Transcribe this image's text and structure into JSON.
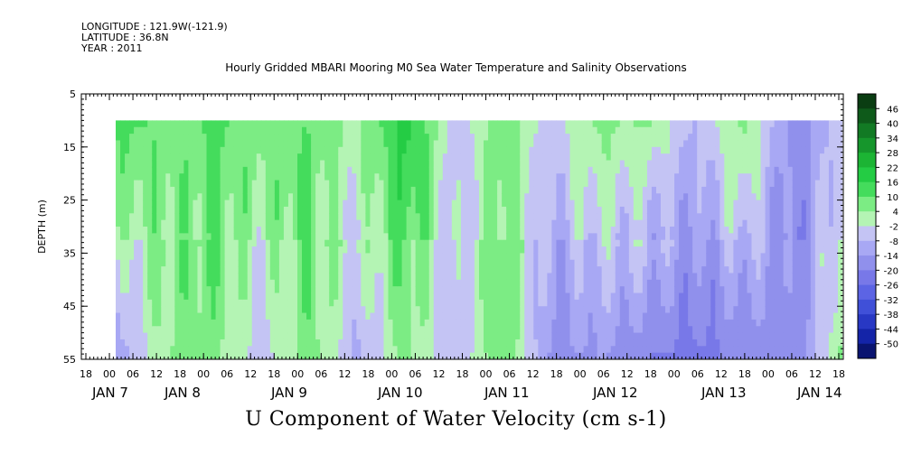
{
  "meta": {
    "longitude": "LONGITUDE : 121.9W(-121.9)",
    "latitude": "LATITUDE : 36.8N",
    "year": "YEAR : 2011"
  },
  "colorbar_ticks": [
    46,
    40,
    34,
    28,
    22,
    16,
    10,
    4,
    -2,
    -8,
    -14,
    -20,
    -26,
    -32,
    -38,
    -44,
    -50
  ],
  "chart_data": {
    "type": "heatmap",
    "title": "Hourly Gridded MBARI Mooring M0 Sea Water Temperature and Salinity Observations",
    "xlabel": "U Component of Water Velocity (cm s-1)",
    "ylabel": "DEPTH (m)",
    "ylim": [
      55,
      5
    ],
    "yticks": [
      5,
      15,
      25,
      35,
      45,
      55
    ],
    "x_range_hours": [
      "JAN 6 18:00",
      "JAN 14 18:00"
    ],
    "x_hour_ticks": [
      "18",
      "00",
      "06",
      "12",
      "18",
      "00",
      "06",
      "12",
      "18",
      "00",
      "06",
      "12",
      "18",
      "00",
      "06",
      "12",
      "18",
      "00",
      "06",
      "12",
      "18",
      "00",
      "06",
      "12",
      "18",
      "00",
      "06",
      "12",
      "18",
      "00",
      "06",
      "12",
      "18"
    ],
    "x_day_labels": [
      "JAN 7",
      "JAN 8",
      "JAN 9",
      "JAN 10",
      "JAN 11",
      "JAN 12",
      "JAN 13",
      "JAN 14"
    ],
    "data_depth_range": [
      10,
      55
    ],
    "colorscale": {
      "min": -50,
      "max": 50,
      "levels": [
        46,
        40,
        34,
        28,
        22,
        16,
        10,
        4,
        -2,
        -8,
        -14,
        -20,
        -26,
        -32,
        -38,
        -44,
        -50
      ],
      "colors": [
        "#0a3d12",
        "#0e5a1a",
        "#127a24",
        "#16962c",
        "#1cb434",
        "#24cc44",
        "#44dc5c",
        "#7cec84",
        "#b4f4b4",
        "#c4c4f4",
        "#a8a8f4",
        "#9090ec",
        "#7878e8",
        "#5c64e4",
        "#4050d8",
        "#2838c4",
        "#1424a8",
        "#0a1470"
      ]
    },
    "u_velocity_profile_by_time": [
      {
        "time": "JAN 7 00",
        "surface": 8,
        "bottom": -14
      },
      {
        "time": "JAN 7 12",
        "surface": 10,
        "bottom": 4
      },
      {
        "time": "JAN 8 00",
        "surface": 14,
        "bottom": 6
      },
      {
        "time": "JAN 8 12",
        "surface": 4,
        "bottom": -6
      },
      {
        "time": "JAN 9 00",
        "surface": 10,
        "bottom": 8
      },
      {
        "time": "JAN 9 12",
        "surface": 6,
        "bottom": -10
      },
      {
        "time": "JAN 10 00",
        "surface": 16,
        "bottom": 6
      },
      {
        "time": "JAN 10 12",
        "surface": -6,
        "bottom": -8
      },
      {
        "time": "JAN 11 00",
        "surface": 12,
        "bottom": 10
      },
      {
        "time": "JAN 11 12",
        "surface": -8,
        "bottom": -16
      },
      {
        "time": "JAN 12 00",
        "surface": 4,
        "bottom": -14
      },
      {
        "time": "JAN 12 12",
        "surface": 8,
        "bottom": -20
      },
      {
        "time": "JAN 13 00",
        "surface": -10,
        "bottom": -22
      },
      {
        "time": "JAN 13 12",
        "surface": 4,
        "bottom": -18
      },
      {
        "time": "JAN 14 00",
        "surface": -14,
        "bottom": -20
      },
      {
        "time": "JAN 14 12",
        "surface": -4,
        "bottom": 6
      }
    ]
  }
}
